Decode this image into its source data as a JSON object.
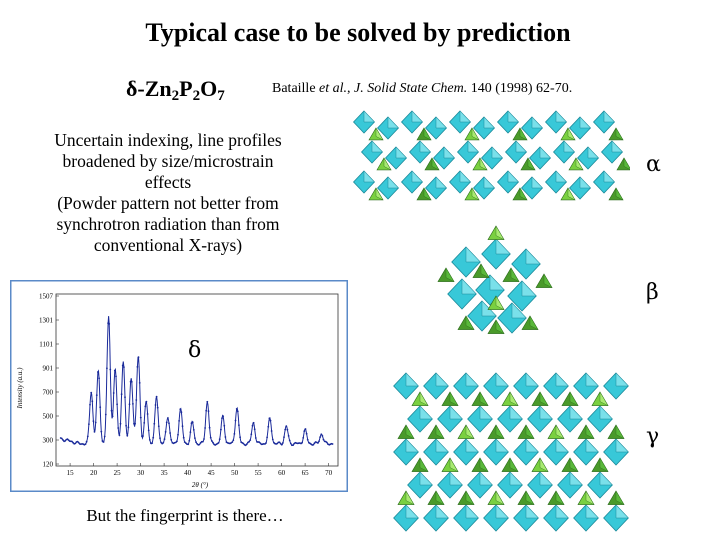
{
  "title": "Typical case to be solved by prediction",
  "compound": {
    "prefix": "δ-Zn",
    "sub1": "2",
    "mid": "P",
    "sub2": "2",
    "end": "O",
    "sub3": "7"
  },
  "reference": {
    "authors": "Bataille ",
    "etal": "et al.",
    "comma": ", ",
    "journal": "J. Solid State Chem.",
    "details": " 140 (1998) 62-70."
  },
  "description_lines": [
    "Uncertain indexing, line profiles",
    "broadened by size/microstrain",
    "effects",
    "(Powder pattern not better from",
    "synchrotron radiation than from",
    "conventional X-rays)"
  ],
  "footer": "But the fingerprint is there…",
  "labels": {
    "alpha": "α",
    "beta": "β",
    "delta": "δ",
    "gamma": "γ"
  },
  "colors": {
    "cyan": "#38c8d8",
    "cyan_dark": "#1a8a9a",
    "green": "#4a9a2a",
    "green_light": "#7ad040",
    "plot_frame": "#5a8ac8"
  },
  "chart_data": {
    "type": "line",
    "ylabel": "Intensity (a.u.)",
    "xlabel": "2θ (°)",
    "yticks": [
      "1507",
      "1301",
      "1101",
      "901",
      "700",
      "500",
      "300",
      "120"
    ],
    "xticks": [
      "15",
      "20",
      "25",
      "30",
      "35",
      "40",
      "45",
      "50",
      "55",
      "60",
      "65",
      "70"
    ],
    "xlim": [
      12,
      72
    ],
    "ylim": [
      120,
      1507
    ],
    "baseline": 300,
    "peaks": [
      {
        "x": 19.5,
        "y": 720
      },
      {
        "x": 21.0,
        "y": 880
      },
      {
        "x": 23.2,
        "y": 1320
      },
      {
        "x": 24.6,
        "y": 900
      },
      {
        "x": 26.3,
        "y": 960
      },
      {
        "x": 28.0,
        "y": 840
      },
      {
        "x": 29.5,
        "y": 1010
      },
      {
        "x": 31.2,
        "y": 640
      },
      {
        "x": 33.4,
        "y": 680
      },
      {
        "x": 35.8,
        "y": 520
      },
      {
        "x": 38.5,
        "y": 580
      },
      {
        "x": 41.0,
        "y": 470
      },
      {
        "x": 44.2,
        "y": 640
      },
      {
        "x": 47.5,
        "y": 520
      },
      {
        "x": 50.5,
        "y": 590
      },
      {
        "x": 54.0,
        "y": 470
      },
      {
        "x": 57.5,
        "y": 500
      },
      {
        "x": 61.0,
        "y": 440
      },
      {
        "x": 65.0,
        "y": 410
      },
      {
        "x": 68.5,
        "y": 380
      }
    ]
  }
}
